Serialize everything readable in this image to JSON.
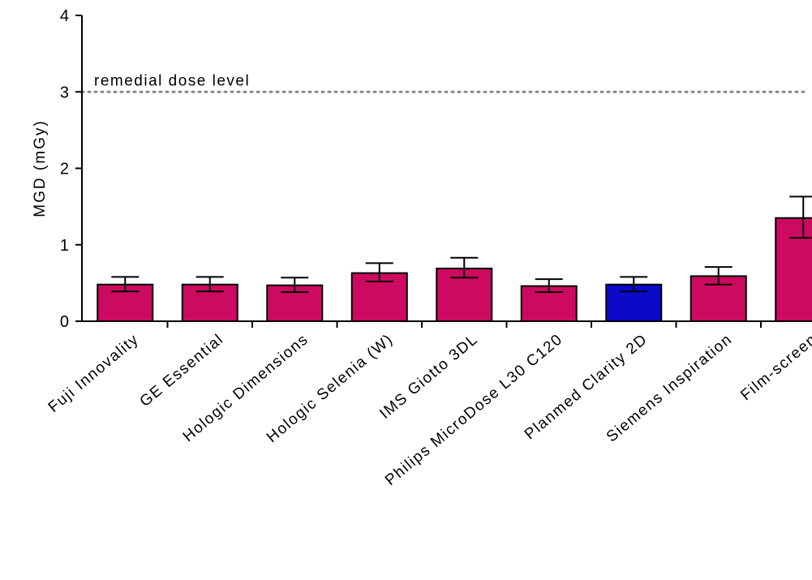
{
  "chart_data": {
    "type": "bar",
    "title": "",
    "xlabel": "",
    "ylabel": "MGD (mGy)",
    "ylim": [
      0,
      4
    ],
    "yticks": [
      0,
      1,
      2,
      3,
      4
    ],
    "grid": false,
    "categories": [
      "Fuji Innovality",
      "GE Essential",
      "Hologic Dimensions",
      "Hologic Selenia (W)",
      "IMS Giotto 3DL",
      "Philips MicroDose L30 C120",
      "Planmed Clarity 2D",
      "Siemens Inspiration",
      "Film-screen"
    ],
    "values": [
      0.48,
      0.48,
      0.47,
      0.63,
      0.69,
      0.46,
      0.48,
      0.59,
      1.35
    ],
    "error_low": [
      0.39,
      0.39,
      0.38,
      0.52,
      0.57,
      0.38,
      0.39,
      0.48,
      1.09
    ],
    "error_high": [
      0.58,
      0.58,
      0.57,
      0.76,
      0.83,
      0.55,
      0.58,
      0.71,
      1.63
    ],
    "bar_colors": [
      "#cc0a5f",
      "#cc0a5f",
      "#cc0a5f",
      "#cc0a5f",
      "#cc0a5f",
      "#cc0a5f",
      "#0a0ac8",
      "#cc0a5f",
      "#cc0a5f"
    ],
    "reference_line": {
      "value": 3,
      "label": "remedial dose level",
      "style": "dotted",
      "color": "#888888"
    }
  }
}
